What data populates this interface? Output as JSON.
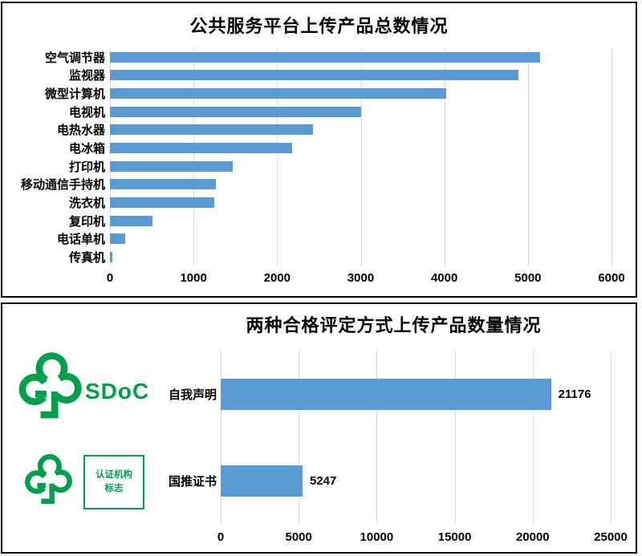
{
  "chart_data": [
    {
      "type": "bar",
      "orientation": "horizontal",
      "title": "公共服务平台上传产品总数情况",
      "categories": [
        "空气调节器",
        "监视器",
        "微型计算机",
        "电视机",
        "电热水器",
        "电冰箱",
        "打印机",
        "移动通信手持机",
        "洗衣机",
        "复印机",
        "电话单机",
        "传真机"
      ],
      "values": [
        5150,
        4890,
        4020,
        3000,
        2430,
        2180,
        1470,
        1270,
        1250,
        510,
        180,
        30
      ],
      "xticks": [
        0,
        1000,
        2000,
        3000,
        4000,
        5000,
        6000
      ],
      "xlim": [
        0,
        6000
      ],
      "grid": true,
      "legend": "none",
      "bar_color": "#5B9BD5",
      "gridline_color": "#D9D9D9"
    },
    {
      "type": "bar",
      "orientation": "horizontal",
      "title": "两种合格评定方式上传产品数量情况",
      "categories": [
        "自我声明",
        "国推证书"
      ],
      "values": [
        21176,
        5247
      ],
      "data_labels": [
        "21176",
        "5247"
      ],
      "xticks": [
        0,
        5000,
        10000,
        15000,
        20000,
        25000
      ],
      "xlim": [
        0,
        25000
      ],
      "grid": true,
      "legend": "none",
      "bar_color": "#5B9BD5",
      "gridline_color": "#D9D9D9"
    }
  ],
  "branding": {
    "sdoc_text": "SDoC",
    "cert_box_line1": "认证机构",
    "cert_box_line2": "标志",
    "logo_icon": "gp-green-product-tree-logo",
    "green": "#009F4D"
  }
}
